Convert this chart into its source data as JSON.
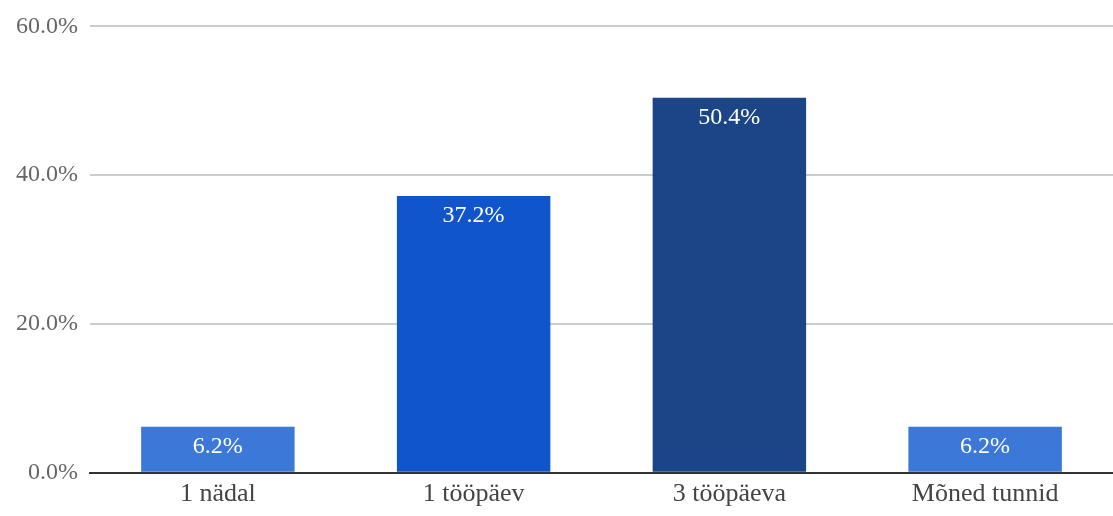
{
  "chart_data": {
    "type": "bar",
    "categories": [
      "1 nädal",
      "1 tööpäev",
      "3 tööpäeva",
      "Mõned tunnid"
    ],
    "values": [
      6.2,
      37.2,
      50.4,
      6.2
    ],
    "colors": [
      "#3c78d8",
      "#1155cc",
      "#1c4587",
      "#3c78d8"
    ],
    "value_labels": [
      "6.2%",
      "37.2%",
      "50.4%",
      "6.2%"
    ],
    "ylim": [
      0,
      60
    ],
    "yticks": [
      {
        "value": 0,
        "label": "0.0%"
      },
      {
        "value": 20,
        "label": "20.0%"
      },
      {
        "value": 40,
        "label": "40.0%"
      },
      {
        "value": 60,
        "label": "60.0%"
      }
    ],
    "grid": "y",
    "legend": false
  }
}
